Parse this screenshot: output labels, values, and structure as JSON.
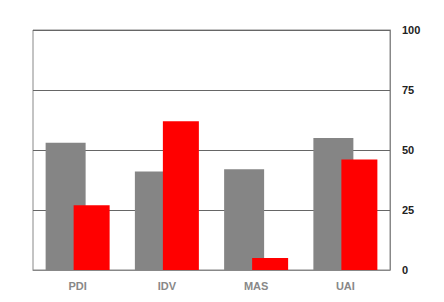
{
  "chart_data": {
    "type": "bar",
    "categories": [
      "PDI",
      "IDV",
      "MAS",
      "UAI"
    ],
    "series": [
      {
        "color": "#858585",
        "values": [
          53,
          41,
          42,
          55
        ]
      },
      {
        "color": "#ff0000",
        "values": [
          27,
          62,
          5,
          46
        ]
      }
    ],
    "ylim": [
      0,
      100
    ],
    "yticks": [
      0,
      25,
      50,
      75,
      100
    ],
    "grid": true
  }
}
